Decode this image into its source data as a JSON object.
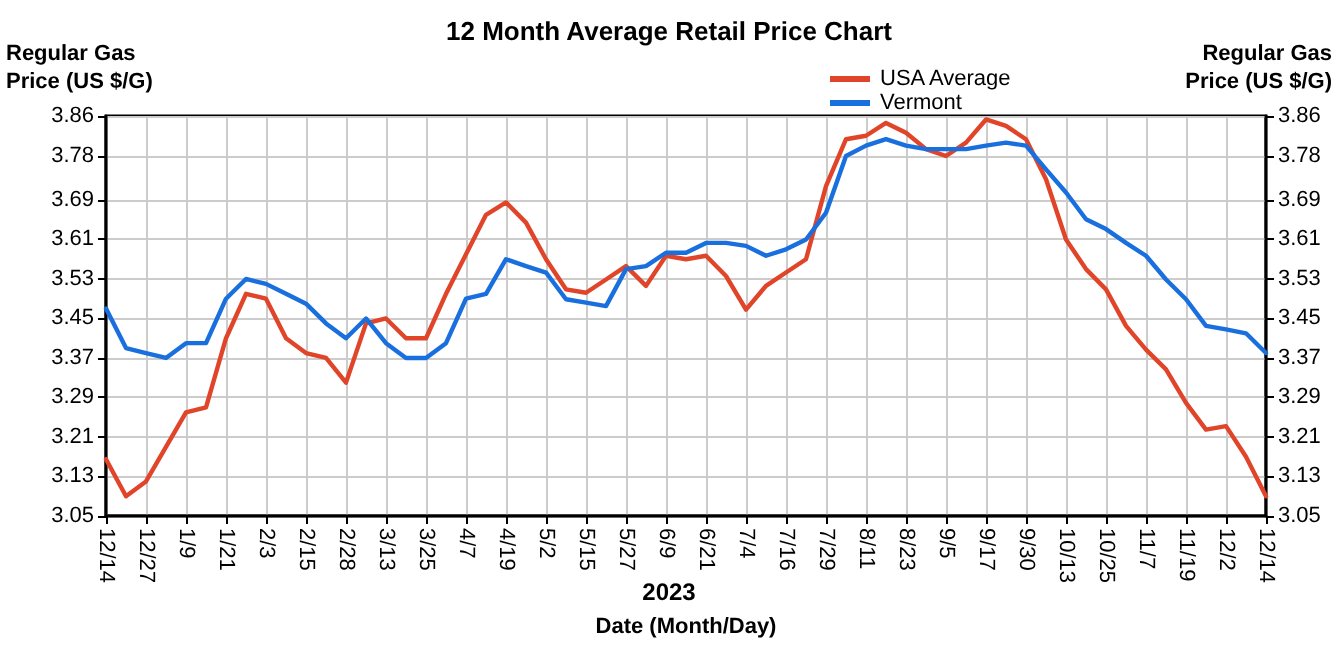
{
  "chart_data": {
    "type": "line",
    "title": "12 Month Average Retail Price Chart",
    "xlabel": "Date (Month/Day)",
    "ylabel": "Regular Gas\nPrice (US $/G)",
    "y2label": "Regular Gas\nPrice (US $/G)",
    "annotations": [
      "2023"
    ],
    "categories": [
      "12/14",
      null,
      "12/27",
      null,
      "1/9",
      null,
      "1/21",
      null,
      "2/3",
      null,
      "2/15",
      null,
      "2/28",
      null,
      "3/13",
      null,
      "3/25",
      null,
      "4/7",
      null,
      "4/19",
      null,
      "5/2",
      null,
      "5/15",
      null,
      "5/27",
      null,
      "6/9",
      null,
      "6/21",
      null,
      "7/4",
      null,
      "7/16",
      null,
      "7/29",
      null,
      "8/11",
      null,
      "8/23",
      null,
      "9/5",
      null,
      "9/17",
      null,
      "9/30",
      null,
      "10/13",
      null,
      "10/25",
      null,
      "11/7",
      null,
      "11/19",
      null,
      "12/2",
      null,
      "12/14"
    ],
    "series": [
      {
        "name": "USA Average",
        "color": "#e0452a",
        "values": [
          3.165,
          3.09,
          3.12,
          3.19,
          3.26,
          3.27,
          3.41,
          3.5,
          3.49,
          3.41,
          3.38,
          3.37,
          3.32,
          3.44,
          3.45,
          3.41,
          3.41,
          3.5,
          3.58,
          3.66,
          3.685,
          3.644,
          3.57,
          3.509,
          3.502,
          3.529,
          3.556,
          3.516,
          3.577,
          3.57,
          3.577,
          3.536,
          3.468,
          3.516,
          3.543,
          3.57,
          3.718,
          3.813,
          3.82,
          3.846,
          3.826,
          3.793,
          3.779,
          3.806,
          3.853,
          3.84,
          3.813,
          3.732,
          3.61,
          3.55,
          3.509,
          3.435,
          3.387,
          3.347,
          3.279,
          3.225,
          3.232,
          3.17,
          3.09
        ]
      },
      {
        "name": "Vermont",
        "color": "#1a6fdf",
        "values": [
          3.47,
          3.39,
          3.38,
          3.37,
          3.4,
          3.4,
          3.49,
          3.53,
          3.52,
          3.5,
          3.48,
          3.44,
          3.41,
          3.45,
          3.4,
          3.37,
          3.37,
          3.4,
          3.49,
          3.5,
          3.57,
          3.556,
          3.543,
          3.489,
          3.482,
          3.475,
          3.55,
          3.556,
          3.583,
          3.583,
          3.603,
          3.603,
          3.597,
          3.577,
          3.59,
          3.61,
          3.664,
          3.779,
          3.8,
          3.813,
          3.8,
          3.793,
          3.793,
          3.793,
          3.8,
          3.806,
          3.8,
          3.752,
          3.705,
          3.651,
          3.631,
          3.603,
          3.577,
          3.529,
          3.489,
          3.435,
          3.428,
          3.42,
          3.38
        ]
      }
    ],
    "ylim": [
      3.05,
      3.86
    ],
    "yticks": [
      {
        "value": 3.05,
        "label": "3.05"
      },
      {
        "value": 3.13,
        "label": "3.13"
      },
      {
        "value": 3.21,
        "label": "3.21"
      },
      {
        "value": 3.29,
        "label": "3.29"
      },
      {
        "value": 3.37,
        "label": "3.37"
      },
      {
        "value": 3.45,
        "label": "3.45"
      },
      {
        "value": 3.53,
        "label": "3.53"
      },
      {
        "value": 3.61,
        "label": "3.61"
      },
      {
        "value": 3.69,
        "label": "3.69"
      },
      {
        "value": 3.78,
        "label": "3.78"
      },
      {
        "value": 3.86,
        "label": "3.86"
      }
    ],
    "y2lim": [
      3.05,
      3.86
    ],
    "y2ticks": [
      {
        "value": 3.05,
        "label": "3.05"
      },
      {
        "value": 3.13,
        "label": "3.13"
      },
      {
        "value": 3.21,
        "label": "3.21"
      },
      {
        "value": 3.29,
        "label": "3.29"
      },
      {
        "value": 3.37,
        "label": "3.37"
      },
      {
        "value": 3.45,
        "label": "3.45"
      },
      {
        "value": 3.53,
        "label": "3.53"
      },
      {
        "value": 3.61,
        "label": "3.61"
      },
      {
        "value": 3.69,
        "label": "3.69"
      },
      {
        "value": 3.78,
        "label": "3.78"
      },
      {
        "value": 3.86,
        "label": "3.86"
      }
    ],
    "grid": true,
    "legend": "top right",
    "marker": "none",
    "line_style": "solid"
  }
}
